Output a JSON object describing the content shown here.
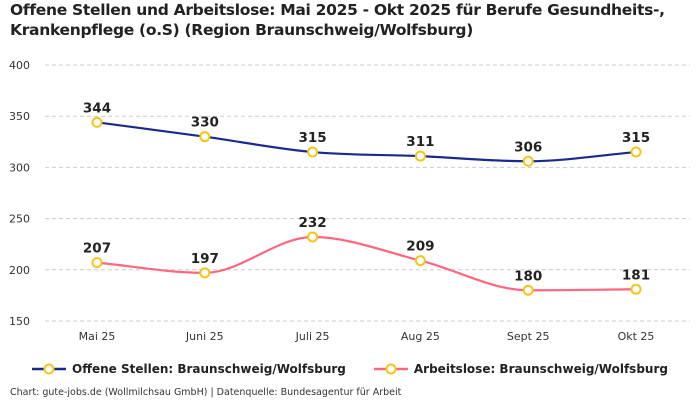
{
  "chart_data": {
    "type": "line",
    "title": "Offene Stellen und Arbeitslose: Mai 2025 - Okt 2025 für Berufe Gesundheits-, Krankenpflege (o.S) (Region Braunschweig/Wolfsburg)",
    "categories": [
      "Mai 25",
      "Juni 25",
      "Juli 25",
      "Aug 25",
      "Sept 25",
      "Okt 25"
    ],
    "ylim": [
      150,
      400
    ],
    "yticks": [
      150,
      200,
      250,
      300,
      350,
      400
    ],
    "grid": true,
    "legend": "bottom",
    "series": [
      {
        "name": "Offene Stellen: Braunschweig/Wolfsburg",
        "values": [
          344,
          330,
          315,
          311,
          306,
          315
        ],
        "color": "#1a2a8c"
      },
      {
        "name": "Arbeitslose: Braunschweig/Wolfsburg",
        "values": [
          207,
          197,
          232,
          209,
          180,
          181
        ],
        "color": "#ff6680"
      }
    ],
    "marker_color": "#f5c518"
  },
  "source": "Chart: gute-jobs.de (Wollmilchsau GmbH) | Datenquelle: Bundesagentur für Arbeit"
}
